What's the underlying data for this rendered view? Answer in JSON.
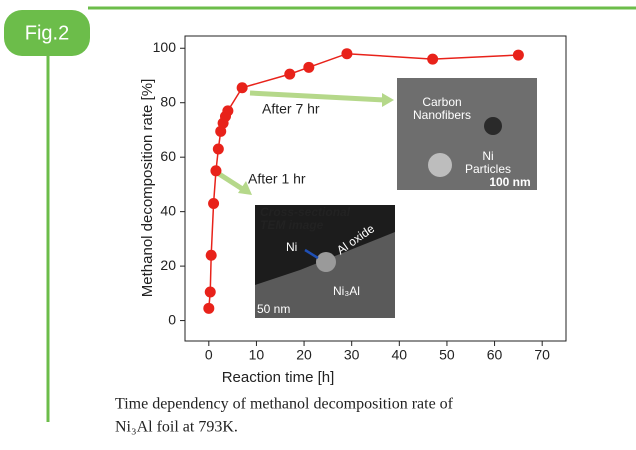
{
  "figure_label": "Fig.2",
  "caption": [
    "Time dependency of methanol decomposition rate of",
    "Ni₃Al foil at 793K."
  ],
  "chart_data": {
    "type": "line",
    "x_label": "Reaction time [h]",
    "y_label": "Methanol decomposition rate [%]",
    "x": [
      0,
      0.3,
      0.5,
      1,
      1.5,
      2,
      2.5,
      3,
      3.5,
      4,
      7,
      17,
      21,
      29,
      47,
      65
    ],
    "series": [
      {
        "color": "#e8221a",
        "values": [
          4.5,
          10.5,
          24,
          43,
          55,
          63,
          69.5,
          72.5,
          75,
          77,
          85.5,
          90.5,
          93,
          98,
          96,
          97.5
        ]
      }
    ],
    "xlim": [
      -5,
      75
    ],
    "xticks": [
      0,
      10,
      20,
      30,
      40,
      50,
      60,
      70
    ],
    "ylim": [
      -7.5,
      104.5
    ],
    "yticks": [
      0,
      20,
      40,
      60,
      80,
      100
    ],
    "annotations": {
      "after7": "After 7 hr",
      "after1": "After 1 hr",
      "carbon": [
        "Carbon",
        "Nanofibers"
      ],
      "ni_particles": [
        "Ni",
        "Particles"
      ],
      "scale100": "100 nm",
      "cross": [
        "Cross-sectional",
        "TEM image"
      ],
      "ni": "Ni",
      "aloxide": "Al oxide",
      "ni3al": "Ni₃Al",
      "scale50": "50 nm"
    }
  }
}
